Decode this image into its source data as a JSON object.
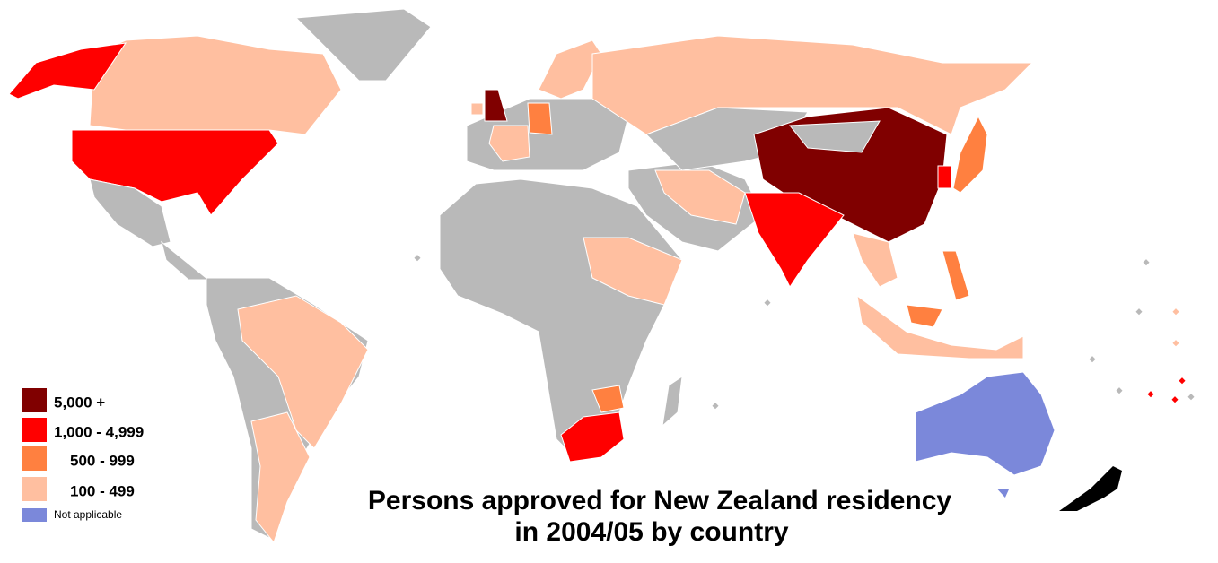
{
  "title": [
    "Persons approved for New Zealand residency",
    "in 2004/05 by country"
  ],
  "legend": [
    {
      "label": "5,000 +",
      "color": "#800000"
    },
    {
      "label": "1,000 - 4,999",
      "color": "#ff0000"
    },
    {
      "label": "500 - 999",
      "color": "#ff8040"
    },
    {
      "label": "100 - 499",
      "color": "#ffbfa0"
    },
    {
      "label": "Not applicable",
      "color": "#7b88da"
    }
  ]
}
